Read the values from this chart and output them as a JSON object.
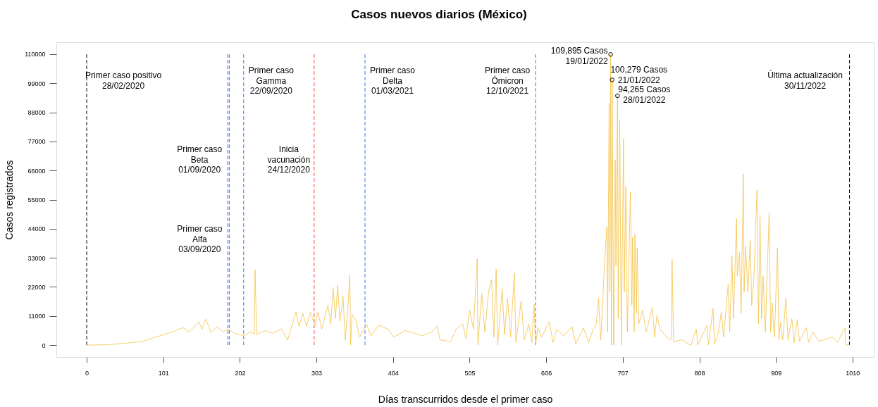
{
  "chart_data": {
    "type": "line",
    "title": "Casos nuevos diarios (México)",
    "xlabel": "Días transcurridos desde el primer caso",
    "ylabel": "Casos registrados",
    "xlim": [
      -40,
      1038
    ],
    "ylim": [
      -4500,
      114500
    ],
    "xticks": [
      0,
      101,
      202,
      303,
      404,
      505,
      606,
      707,
      808,
      909,
      1010
    ],
    "yticks": [
      0,
      11000,
      22000,
      33000,
      44000,
      55000,
      66000,
      77000,
      88000,
      99000,
      110000
    ],
    "grid": false,
    "series": [
      {
        "color": "#f5c242",
        "x": [
          0,
          20,
          34,
          50,
          72,
          85,
          102,
          115,
          127,
          135,
          148,
          152,
          157,
          164,
          172,
          180,
          186,
          195,
          208,
          215,
          221,
          222,
          223,
          224,
          235,
          245,
          257,
          265,
          276,
          280,
          285,
          290,
          295,
          301,
          305,
          310,
          318,
          322,
          325,
          328,
          331,
          334,
          338,
          341,
          344,
          347,
          348,
          350,
          355,
          360,
          369,
          375,
          385,
          397,
          405,
          420,
          443,
          455,
          462,
          466,
          480,
          487,
          496,
          500,
          505,
          510,
          515,
          516,
          521,
          525,
          530,
          534,
          537,
          540,
          542,
          548,
          551,
          555,
          559,
          564,
          566,
          573,
          577,
          583,
          587,
          590,
          592,
          595,
          600,
          610,
          615,
          620,
          629,
          640,
          645,
          655,
          662,
          668,
          672,
          675,
          678,
          683,
          686,
          687,
          689,
          690,
          691,
          692,
          693,
          694,
          695,
          697,
          698,
          700,
          701,
          703,
          705,
          708,
          709,
          711,
          713,
          717,
          719,
          720,
          722,
          723,
          725,
          726,
          728,
          733,
          738,
          746,
          749,
          752,
          756,
          765,
          771,
          772,
          774,
          785,
          793,
          797,
          804,
          806,
          818,
          820,
          826,
          828,
          833,
          837,
          840,
          846,
          848,
          851,
          853,
          857,
          858,
          861,
          863,
          866,
          867,
          869,
          872,
          875,
          877,
          880,
          884,
          886,
          888,
          890,
          892,
          895,
          900,
          902,
          904,
          907,
          911,
          913,
          915,
          918,
          922,
          925,
          930,
          933,
          937,
          940,
          949,
          952,
          958,
          965,
          971,
          983,
          990,
          1000,
          1001,
          1006
        ],
        "values": [
          0,
          100,
          300,
          700,
          1300,
          2500,
          4000,
          5200,
          6600,
          5000,
          8800,
          6000,
          9800,
          4800,
          7000,
          5000,
          6100,
          4500,
          3500,
          5000,
          4200,
          28500,
          17000,
          4000,
          5500,
          4500,
          6100,
          1900,
          12500,
          7000,
          12000,
          7000,
          12500,
          7500,
          12500,
          6000,
          15000,
          8000,
          21800,
          10000,
          22600,
          9000,
          18600,
          1900,
          12000,
          26600,
          0,
          11500,
          9500,
          3000,
          8000,
          3500,
          7500,
          6100,
          3000,
          5500,
          3500,
          5000,
          7200,
          2000,
          1300,
          6000,
          8000,
          2500,
          13300,
          6000,
          32500,
          0,
          19400,
          5000,
          20000,
          24800,
          3000,
          28800,
          0,
          21300,
          4000,
          17800,
          3000,
          27200,
          1000,
          16800,
          2000,
          8000,
          1000,
          15400,
          0,
          6600,
          3000,
          8800,
          1000,
          6000,
          3500,
          7000,
          500,
          6500,
          1000,
          6000,
          8000,
          17800,
          2000,
          31200,
          44700,
          5000,
          91300,
          20000,
          109895,
          0,
          100279,
          45300,
          0,
          70000,
          30000,
          94265,
          10000,
          85000,
          0,
          78000,
          20000,
          60000,
          5000,
          57800,
          15000,
          40700,
          5000,
          41800,
          12000,
          36700,
          8000,
          13300,
          5000,
          14100,
          3000,
          11200,
          6000,
          3000,
          2000,
          32500,
          1300,
          2000,
          500,
          0,
          6100,
          0,
          7400,
          0,
          13800,
          500,
          4500,
          12500,
          3000,
          23100,
          5000,
          33800,
          10000,
          47900,
          26000,
          35000,
          12000,
          64700,
          20000,
          37300,
          20000,
          39900,
          15000,
          26000,
          58600,
          8000,
          49300,
          10000,
          26000,
          5000,
          50100,
          5000,
          16000,
          3000,
          36700,
          2000,
          8800,
          2000,
          17800,
          2000,
          10000,
          1000,
          9600,
          1500,
          6600,
          1000,
          5000,
          1500,
          1900,
          3000,
          1000,
          6600,
          0,
          200
        ]
      },
      {
        "type": "scatter",
        "color": "#000000",
        "marker": "circle",
        "x": [
          691,
          693,
          700
        ],
        "values": [
          109895,
          100279,
          94265
        ]
      }
    ],
    "ref_lines": [
      {
        "axis": "x",
        "value": 0,
        "label": "Primer caso positivo\n28/02/2020",
        "color": "#000000",
        "line_style": "dashed"
      },
      {
        "axis": "x",
        "value": 186,
        "label": "Primer caso\nBeta\n01/09/2020",
        "color": "#3f6ee8",
        "line_style": "dashed"
      },
      {
        "axis": "x",
        "value": 188,
        "label": "Primer caso\nAlfa\n03/09/2020",
        "color": "#3f6ee8",
        "line_style": "dashed"
      },
      {
        "axis": "x",
        "value": 207,
        "label": "Primer caso\nGamma\n22/09/2020",
        "color": "#3f6ee8",
        "line_style": "dashed"
      },
      {
        "axis": "x",
        "value": 300,
        "label": "Inicia\nvacunación\n24/12/2020",
        "color": "#e8453c",
        "line_style": "dashed"
      },
      {
        "axis": "x",
        "value": 367,
        "label": "Primer caso\nDelta\n01/03/2021",
        "color": "#3f6ee8",
        "line_style": "dashed"
      },
      {
        "axis": "x",
        "value": 592,
        "label": "Primer caso\nÓmicron\n12/10/2021",
        "color": "#3f6ee8",
        "line_style": "dashed"
      },
      {
        "axis": "x",
        "value": 1006,
        "label": "Última actualización\n30/11/2022",
        "color": "#000000",
        "line_style": "dashed"
      }
    ],
    "annotations": [
      {
        "text": "109,895 Casos\n19/01/2022",
        "x": 691,
        "y": 109895
      },
      {
        "text": "100,279 Casos\n21/01/2022",
        "x": 693,
        "y": 100279
      },
      {
        "text": "94,265 Casos\n28/01/2022",
        "x": 700,
        "y": 94265
      }
    ]
  }
}
